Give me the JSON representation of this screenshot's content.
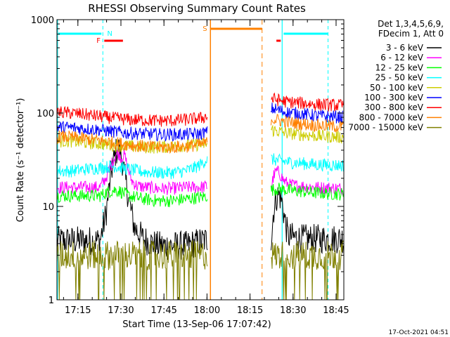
{
  "chart_data": {
    "type": "line",
    "title": "RHESSI Observing Summary Count Rates",
    "xlabel": "Start Time (13-Sep-06 17:07:42)",
    "ylabel": "Count Rate (s⁻¹ detector⁻¹)",
    "y_scale": "log",
    "ylim": [
      1,
      1000
    ],
    "xlim_minutes": [
      0,
      100
    ],
    "x_ticks": [
      {
        "label": "17:15",
        "minutes": 7.3
      },
      {
        "label": "17:30",
        "minutes": 22.3
      },
      {
        "label": "17:45",
        "minutes": 37.3
      },
      {
        "label": "18:00",
        "minutes": 52.3
      },
      {
        "label": "18:15",
        "minutes": 67.3
      },
      {
        "label": "18:30",
        "minutes": 82.3
      },
      {
        "label": "18:45",
        "minutes": 97.3
      }
    ],
    "y_ticks": [
      {
        "label": "1",
        "value": 1
      },
      {
        "label": "10",
        "value": 10
      },
      {
        "label": "100",
        "value": 100
      },
      {
        "label": "1000",
        "value": 1000
      }
    ],
    "legend_position": "right",
    "legend_header": [
      "Det 1,3,4,5,6,9,",
      "FDecim 1, Att 0"
    ],
    "timestamp": "17-Oct-2021 04:51",
    "data_gap_minutes": [
      52.5,
      74.5
    ],
    "series": [
      {
        "name": "3 - 6 keV",
        "color": "#000000",
        "points": [
          [
            0,
            4.3
          ],
          [
            10,
            4.3
          ],
          [
            15,
            4.3
          ],
          [
            17,
            8
          ],
          [
            19,
            24
          ],
          [
            20.5,
            38
          ],
          [
            21.5,
            42
          ],
          [
            22.5,
            35
          ],
          [
            24,
            18
          ],
          [
            25.5,
            10
          ],
          [
            27,
            6
          ],
          [
            30,
            4.5
          ],
          [
            35,
            3.8
          ],
          [
            40,
            3.8
          ],
          [
            45,
            3.8
          ],
          [
            50,
            4.2
          ],
          [
            52.3,
            4.4
          ],
          [
            74.8,
            4.6
          ],
          [
            75.5,
            9
          ],
          [
            76.5,
            12.5
          ],
          [
            77.5,
            13.5
          ],
          [
            78.5,
            11
          ],
          [
            79.5,
            7
          ],
          [
            80.5,
            4.8
          ],
          [
            85,
            4.5
          ],
          [
            92,
            4.5
          ],
          [
            100,
            4.5
          ]
        ]
      },
      {
        "name": "6 - 12 keV",
        "color": "#ff00ff",
        "points": [
          [
            0,
            16
          ],
          [
            10,
            16
          ],
          [
            15,
            16
          ],
          [
            17,
            20
          ],
          [
            19,
            28
          ],
          [
            20.5,
            36
          ],
          [
            21.5,
            37
          ],
          [
            22.5,
            33
          ],
          [
            23.5,
            36
          ],
          [
            24.5,
            27
          ],
          [
            26,
            19
          ],
          [
            28,
            16.5
          ],
          [
            35,
            15.5
          ],
          [
            40,
            15.5
          ],
          [
            45,
            16
          ],
          [
            50,
            16
          ],
          [
            52.3,
            16.5
          ],
          [
            74.8,
            16.5
          ],
          [
            75.5,
            21
          ],
          [
            76.5,
            24
          ],
          [
            77.5,
            23
          ],
          [
            79,
            19
          ],
          [
            81,
            17
          ],
          [
            90,
            16
          ],
          [
            100,
            15.5
          ]
        ]
      },
      {
        "name": "12 - 25 keV",
        "color": "#00ff00",
        "points": [
          [
            0,
            13
          ],
          [
            10,
            13
          ],
          [
            15,
            13
          ],
          [
            17,
            14
          ],
          [
            20,
            15
          ],
          [
            22,
            14.5
          ],
          [
            25,
            13
          ],
          [
            30,
            12
          ],
          [
            35,
            11.5
          ],
          [
            40,
            11.5
          ],
          [
            45,
            12
          ],
          [
            50,
            12.5
          ],
          [
            52.3,
            13
          ],
          [
            74.8,
            15
          ],
          [
            77,
            15.5
          ],
          [
            80,
            15
          ],
          [
            90,
            14
          ],
          [
            100,
            13.5
          ]
        ]
      },
      {
        "name": "25 - 50 keV",
        "color": "#00ffff",
        "points": [
          [
            0,
            24
          ],
          [
            5,
            24
          ],
          [
            10,
            25
          ],
          [
            15,
            26
          ],
          [
            20,
            27
          ],
          [
            25,
            25
          ],
          [
            30,
            23.5
          ],
          [
            35,
            23
          ],
          [
            40,
            23
          ],
          [
            45,
            24
          ],
          [
            48,
            26
          ],
          [
            50,
            28
          ],
          [
            52.3,
            32
          ],
          [
            74.8,
            32
          ],
          [
            77,
            31
          ],
          [
            80,
            30
          ],
          [
            90,
            28
          ],
          [
            100,
            27.5
          ]
        ]
      },
      {
        "name": "50 - 100 keV",
        "color": "#cccc00",
        "points": [
          [
            0,
            50
          ],
          [
            5,
            50
          ],
          [
            10,
            48
          ],
          [
            15,
            47
          ],
          [
            20,
            45
          ],
          [
            25,
            44
          ],
          [
            30,
            43
          ],
          [
            35,
            43
          ],
          [
            40,
            44
          ],
          [
            45,
            45
          ],
          [
            50,
            46
          ],
          [
            52.3,
            47
          ],
          [
            74.8,
            66
          ],
          [
            77,
            64
          ],
          [
            80,
            61
          ],
          [
            90,
            57
          ],
          [
            100,
            55
          ]
        ]
      },
      {
        "name": "100 - 300 keV",
        "color": "#0000ff",
        "points": [
          [
            0,
            71
          ],
          [
            5,
            70
          ],
          [
            10,
            68
          ],
          [
            15,
            66
          ],
          [
            20,
            63
          ],
          [
            25,
            61
          ],
          [
            30,
            60
          ],
          [
            35,
            59
          ],
          [
            40,
            59
          ],
          [
            45,
            59
          ],
          [
            50,
            60
          ],
          [
            52.3,
            62
          ],
          [
            74.8,
            112
          ],
          [
            77,
            108
          ],
          [
            80,
            102
          ],
          [
            90,
            94
          ],
          [
            100,
            90
          ]
        ]
      },
      {
        "name": "300 - 800 keV",
        "color": "#ff0000",
        "points": [
          [
            0,
            102
          ],
          [
            5,
            100
          ],
          [
            10,
            96
          ],
          [
            15,
            92
          ],
          [
            20,
            88
          ],
          [
            25,
            85
          ],
          [
            30,
            84
          ],
          [
            35,
            83
          ],
          [
            40,
            83
          ],
          [
            45,
            85
          ],
          [
            50,
            88
          ],
          [
            52.3,
            92
          ],
          [
            74.8,
            142
          ],
          [
            77,
            138
          ],
          [
            80,
            132
          ],
          [
            90,
            124
          ],
          [
            100,
            120
          ]
        ]
      },
      {
        "name": "800 - 7000 keV",
        "color": "#ff8000",
        "points": [
          [
            0,
            56
          ],
          [
            5,
            55
          ],
          [
            10,
            53
          ],
          [
            15,
            51
          ],
          [
            20,
            48
          ],
          [
            25,
            46
          ],
          [
            30,
            44
          ],
          [
            35,
            43
          ],
          [
            40,
            43
          ],
          [
            45,
            44
          ],
          [
            50,
            46
          ],
          [
            52.3,
            48
          ],
          [
            74.8,
            87
          ],
          [
            77,
            84
          ],
          [
            80,
            80
          ],
          [
            90,
            74
          ],
          [
            100,
            71
          ]
        ]
      },
      {
        "name": "7000 - 15000 keV",
        "color": "#808000",
        "points": [
          [
            0,
            3
          ],
          [
            10,
            3
          ],
          [
            15,
            3
          ],
          [
            20,
            3
          ],
          [
            25,
            3
          ],
          [
            30,
            3
          ],
          [
            35,
            3
          ],
          [
            40,
            3
          ],
          [
            45,
            3
          ],
          [
            50,
            3
          ],
          [
            52.3,
            3
          ],
          [
            74.8,
            3
          ],
          [
            80,
            3
          ],
          [
            90,
            3
          ],
          [
            100,
            3
          ]
        ]
      }
    ],
    "flags": [
      {
        "label": "N",
        "color": "#00ffff"
      },
      {
        "label": "F",
        "color": "#ff0000"
      },
      {
        "label": "S",
        "color": "#ff8000"
      }
    ],
    "colors": {
      "axis": "#000000",
      "night_line": "#00ffff",
      "saa_line": "#ff8000",
      "flare_bar": "#ff0000"
    }
  }
}
